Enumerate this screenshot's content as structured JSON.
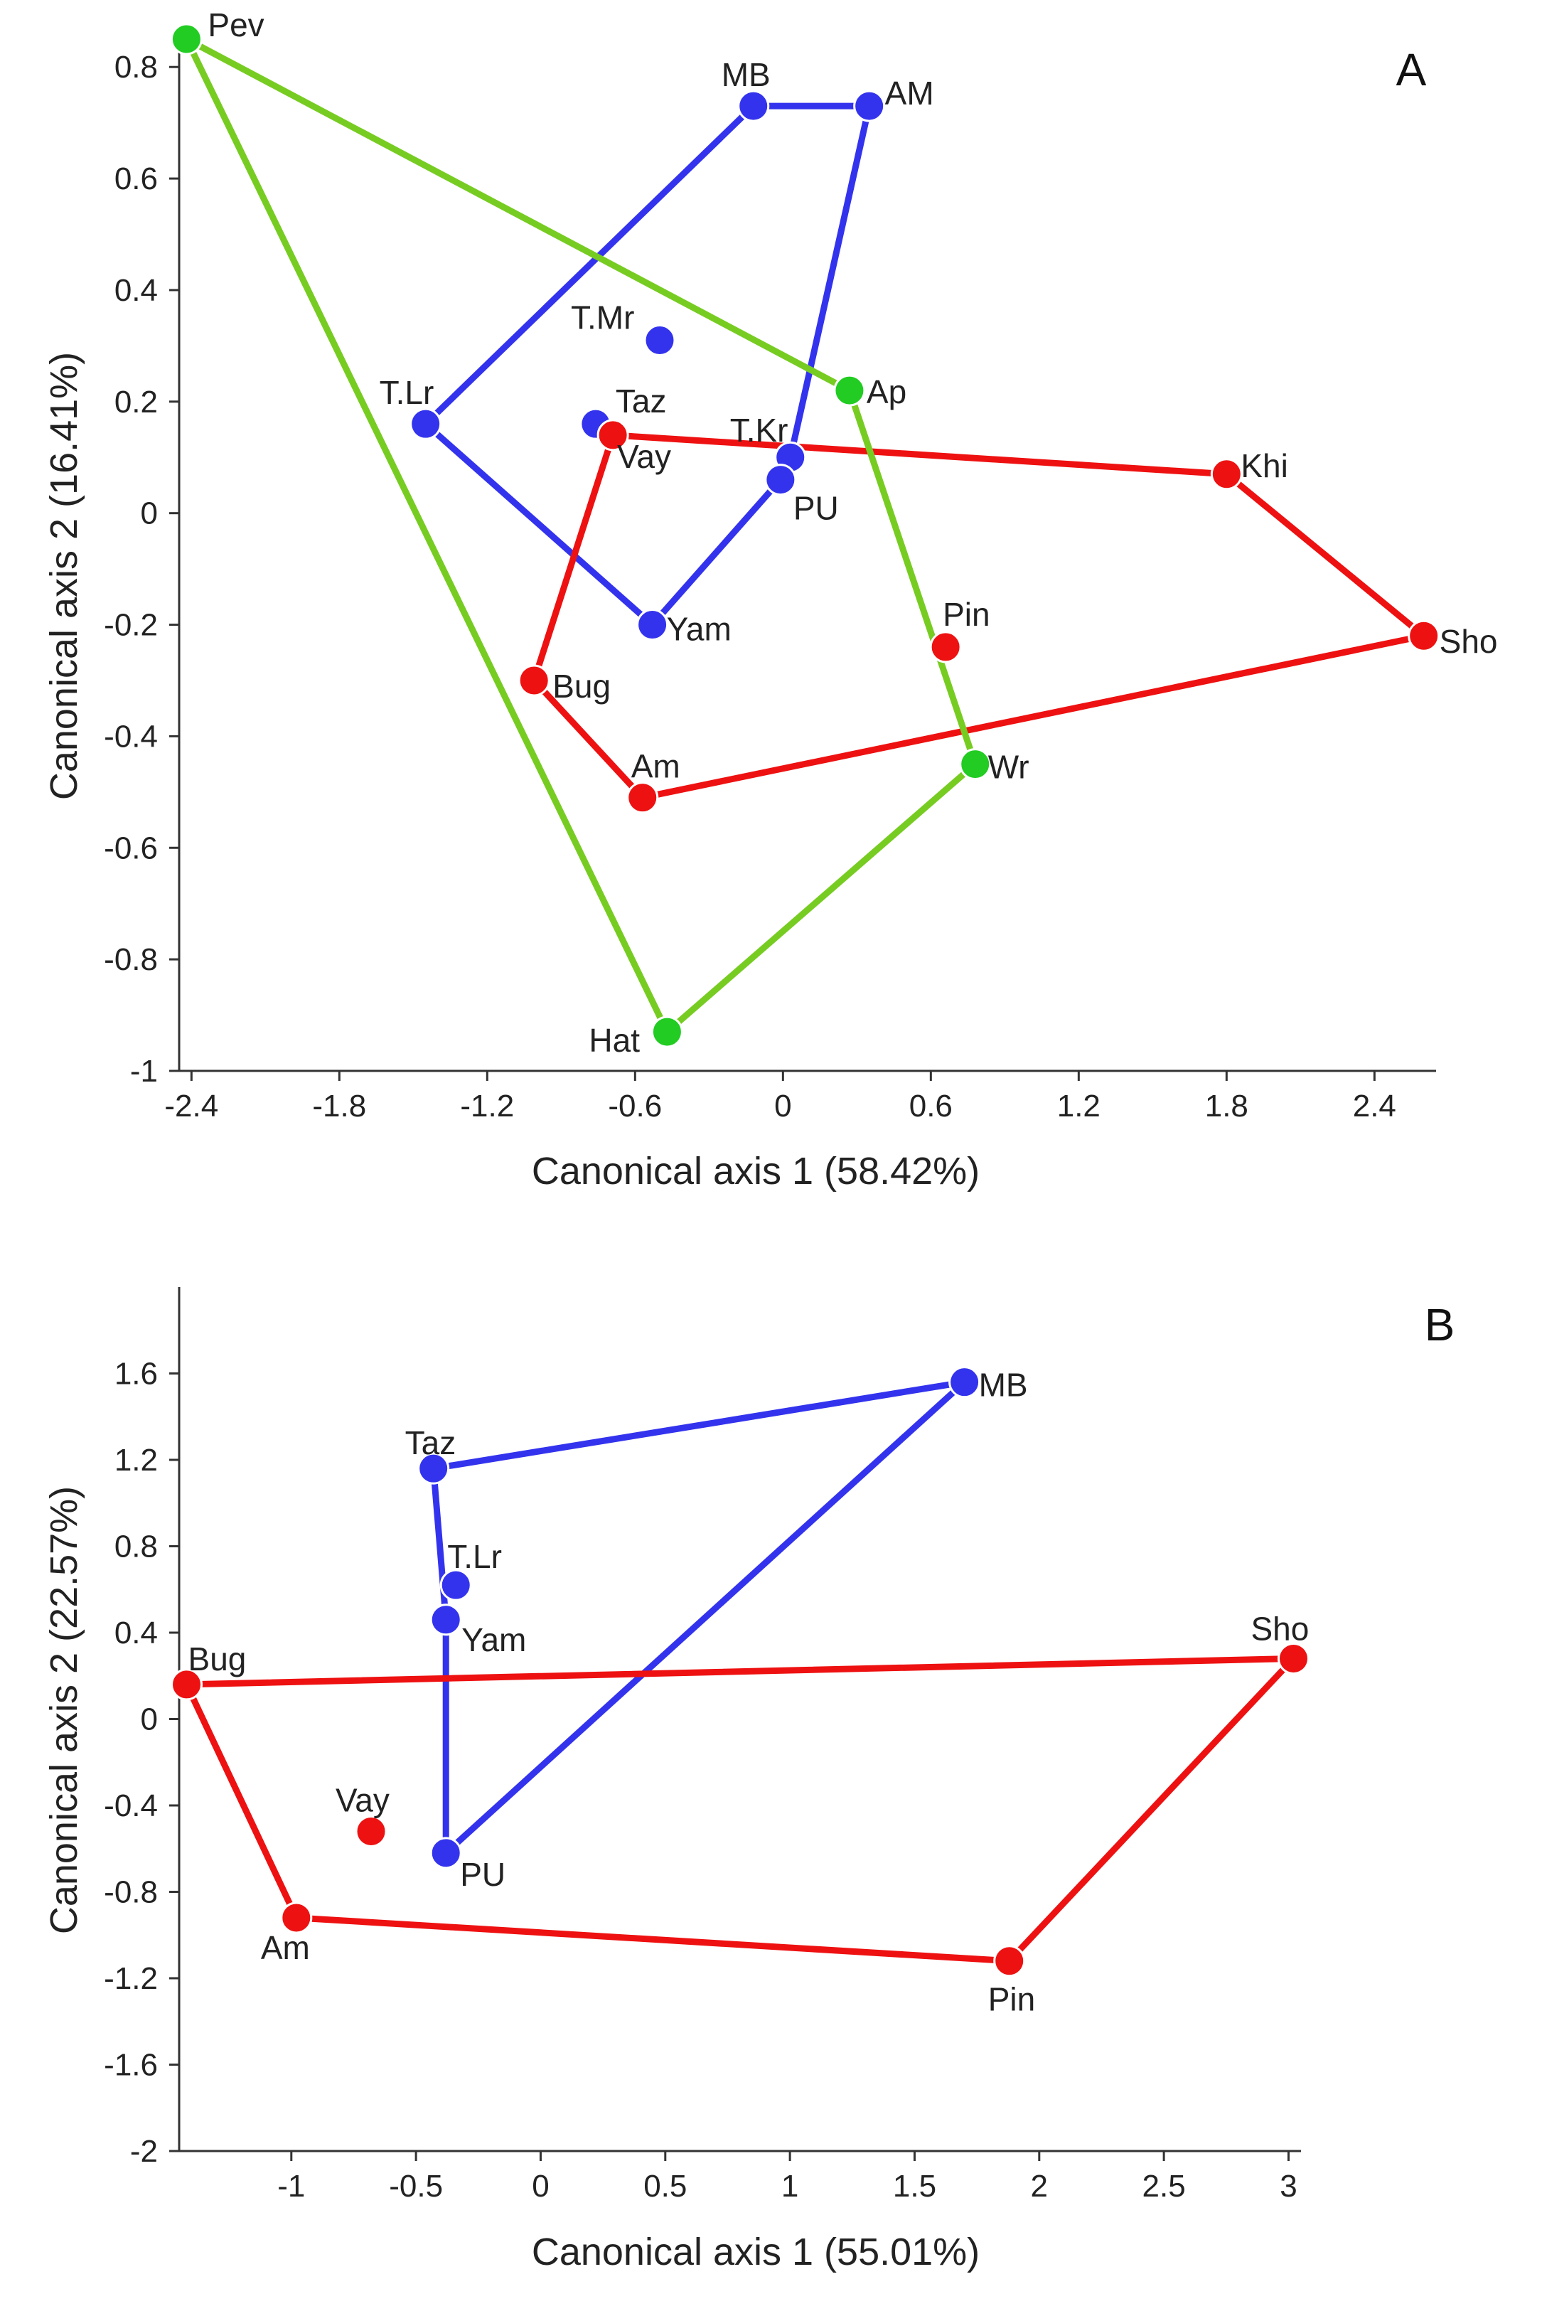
{
  "colors": {
    "axis": "#333333",
    "blue": "#3333ee",
    "red": "#ee1111",
    "green": "#22cc22",
    "green_line": "#77cc22"
  },
  "chart_data": [
    {
      "panel": "A",
      "type": "scatter",
      "xlabel": "Canonical axis 1 (58.42%)",
      "ylabel": "Canonical axis 2 (16.41%)",
      "xlim": [
        -2.45,
        2.65
      ],
      "ylim": [
        -1.0,
        0.85
      ],
      "xticks": [
        "-2.4",
        "-1.8",
        "-1.2",
        "-0.6",
        "0",
        "0.6",
        "1.2",
        "1.8",
        "2.4"
      ],
      "yticks": [
        "-1",
        "-0.8",
        "-0.6",
        "-0.4",
        "-0.2",
        "0",
        "0.2",
        "0.4",
        "0.6",
        "0.8"
      ],
      "series": [
        {
          "name": "blue group",
          "color": "blue",
          "points": [
            {
              "label": "MB",
              "x": -0.12,
              "y": 0.73
            },
            {
              "label": "AM",
              "x": 0.35,
              "y": 0.73
            },
            {
              "label": "T.Mr",
              "x": -0.5,
              "y": 0.31
            },
            {
              "label": "T.Lr",
              "x": -1.45,
              "y": 0.16
            },
            {
              "label": "Taz",
              "x": -0.76,
              "y": 0.16
            },
            {
              "label": "T.Kr",
              "x": 0.03,
              "y": 0.1
            },
            {
              "label": "PU",
              "x": -0.01,
              "y": 0.06
            },
            {
              "label": "Yam",
              "x": -0.53,
              "y": -0.2
            }
          ],
          "hull": [
            "T.Lr",
            "MB",
            "AM",
            "T.Kr",
            "PU",
            "Yam",
            "T.Lr"
          ]
        },
        {
          "name": "red group",
          "color": "red",
          "points": [
            {
              "label": "Vay",
              "x": -0.69,
              "y": 0.14
            },
            {
              "label": "Khi",
              "x": 1.8,
              "y": 0.07
            },
            {
              "label": "Sho",
              "x": 2.6,
              "y": -0.22
            },
            {
              "label": "Pin",
              "x": 0.66,
              "y": -0.24
            },
            {
              "label": "Bug",
              "x": -1.01,
              "y": -0.3
            },
            {
              "label": "Am",
              "x": -0.57,
              "y": -0.51
            }
          ],
          "hull": [
            "Vay",
            "Khi",
            "Sho",
            "Am",
            "Bug",
            "Vay"
          ]
        },
        {
          "name": "green group",
          "color": "green",
          "points": [
            {
              "label": "Pev",
              "x": -2.42,
              "y": 0.85
            },
            {
              "label": "Ap",
              "x": 0.27,
              "y": 0.22
            },
            {
              "label": "Wr",
              "x": 0.78,
              "y": -0.45
            },
            {
              "label": "Hat",
              "x": -0.47,
              "y": -0.93
            }
          ],
          "hull": [
            "Pev",
            "Ap",
            "Wr",
            "Hat",
            "Pev"
          ]
        }
      ]
    },
    {
      "panel": "B",
      "type": "scatter",
      "xlabel": "Canonical axis 1 (55.01%)",
      "ylabel": "Canonical axis 2 (22.57%)",
      "xlim": [
        -1.45,
        3.05
      ],
      "ylim": [
        -2.0,
        2.0
      ],
      "xticks": [
        "-1",
        "-0.5",
        "0",
        "0.5",
        "1",
        "1.5",
        "2",
        "2.5",
        "3"
      ],
      "yticks": [
        "-2",
        "-1.6",
        "-1.2",
        "-0.8",
        "-0.4",
        "0",
        "0.4",
        "0.8",
        "1.2",
        "1.6"
      ],
      "series": [
        {
          "name": "blue group",
          "color": "blue",
          "points": [
            {
              "label": "MB",
              "x": 1.7,
              "y": 1.56
            },
            {
              "label": "Taz",
              "x": -0.43,
              "y": 1.16
            },
            {
              "label": "T.Lr",
              "x": -0.34,
              "y": 0.62
            },
            {
              "label": "Yam",
              "x": -0.38,
              "y": 0.46
            },
            {
              "label": "PU",
              "x": -0.38,
              "y": -0.62
            }
          ],
          "hull": [
            "Taz",
            "MB",
            "PU",
            "Yam",
            "Taz"
          ]
        },
        {
          "name": "red group",
          "color": "red",
          "points": [
            {
              "label": "Bug",
              "x": -1.42,
              "y": 0.16
            },
            {
              "label": "Sho",
              "x": 3.02,
              "y": 0.28
            },
            {
              "label": "Vay",
              "x": -0.68,
              "y": -0.52
            },
            {
              "label": "Am",
              "x": -0.98,
              "y": -0.92
            },
            {
              "label": "Pin",
              "x": 1.88,
              "y": -1.12
            }
          ],
          "hull": [
            "Bug",
            "Sho",
            "Pin",
            "Am",
            "Bug"
          ]
        }
      ]
    }
  ]
}
